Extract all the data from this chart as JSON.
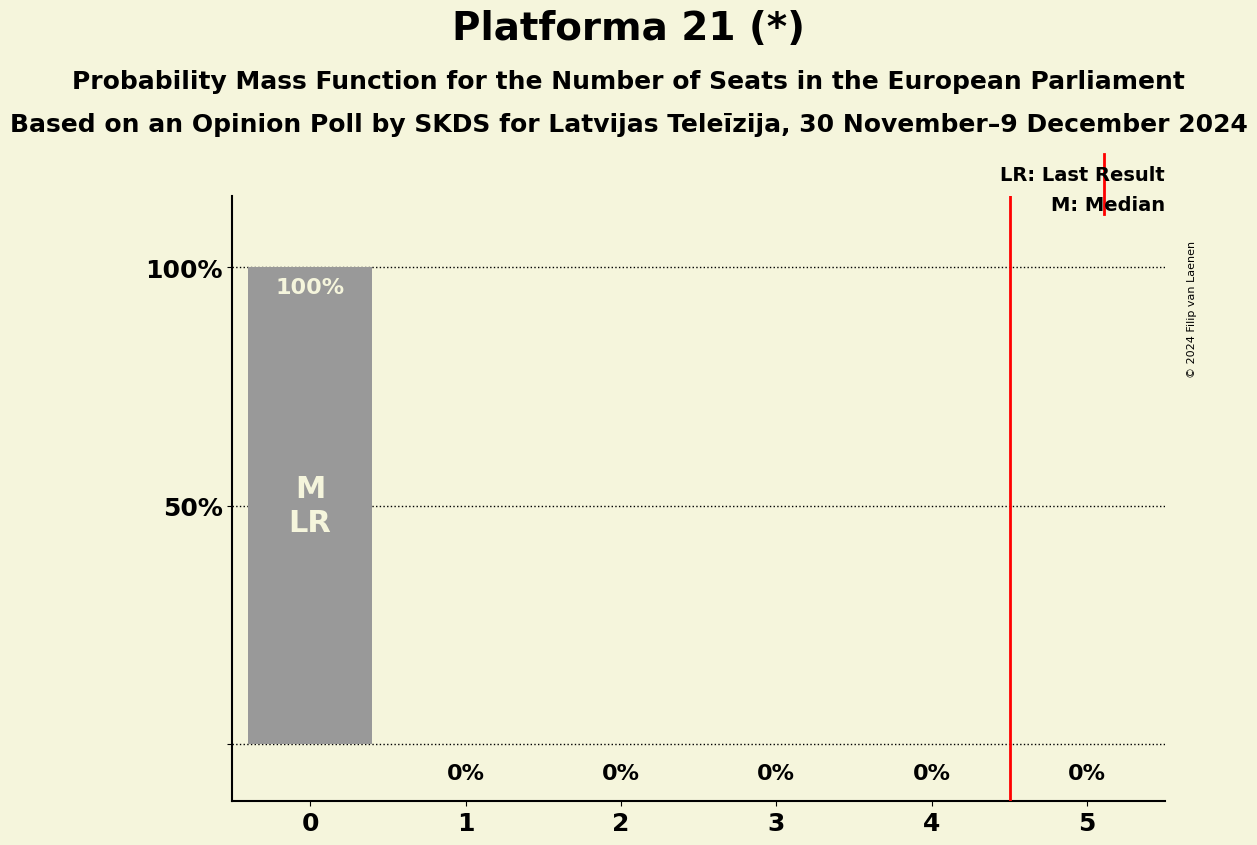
{
  "title": "Platforma 21 (*)",
  "subtitle1": "Probability Mass Function for the Number of Seats in the European Parliament",
  "subtitle2": "Based on an Opinion Poll by SKDS for Latvijas Teleīzija, 30 November–9 December 2024",
  "copyright": "© 2024 Filip van Laenen",
  "seats": [
    0,
    1,
    2,
    3,
    4,
    5
  ],
  "probabilities": [
    1.0,
    0.0,
    0.0,
    0.0,
    0.0,
    0.0
  ],
  "bar_color": "#999999",
  "bar_labels": [
    "100%",
    "0%",
    "0%",
    "0%",
    "0%",
    "0%"
  ],
  "last_result": 4.5,
  "median": 0,
  "background_color": "#f5f5dc",
  "bar_text_color": "#f5f5dc",
  "legend_lr": "LR: Last Result",
  "legend_m": "M: Median",
  "ytick_labels": [
    "",
    "50%",
    "100%"
  ],
  "ytick_vals": [
    0.0,
    0.5,
    1.0
  ],
  "title_fontsize": 28,
  "subtitle_fontsize": 18,
  "bar_label_fontsize": 16,
  "axis_fontsize": 18,
  "bar_width": 0.8
}
